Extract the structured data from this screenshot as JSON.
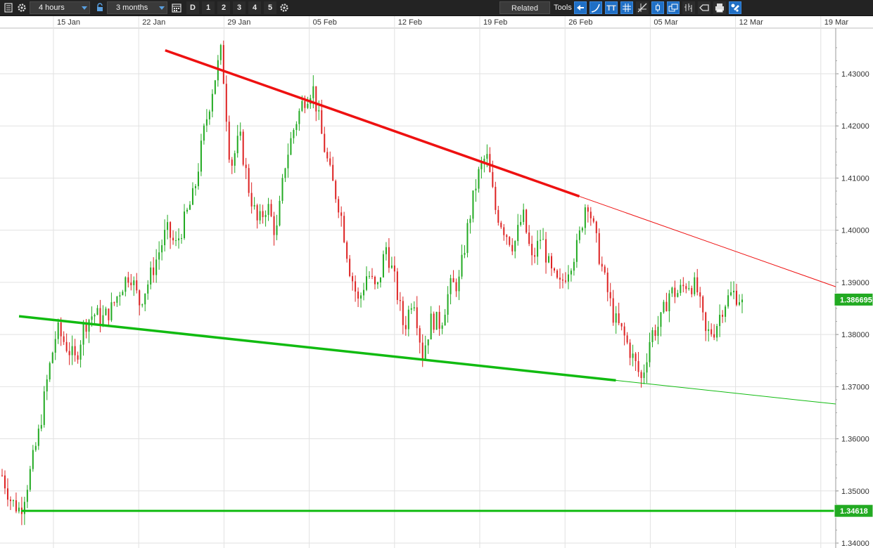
{
  "toolbar": {
    "timeframe": "4 hours",
    "range": "3 months",
    "period_buttons": [
      "D",
      "1",
      "2",
      "3",
      "4",
      "5"
    ],
    "related_label": "Related",
    "tools_label": "Tools",
    "tt_label": "TT",
    "icons": [
      "sheet-icon",
      "gear-icon",
      "lock-icon",
      "calendar-icon",
      "settings-icon",
      "back-arrow-icon",
      "curve-icon",
      "text-icon",
      "grid-icon",
      "crosshair-icon",
      "candle-icon",
      "window-icon",
      "bars-icon",
      "label-icon",
      "print-icon",
      "tools-icon"
    ],
    "colors": {
      "bg": "#232323",
      "accent": "#1f6fc5"
    }
  },
  "chart_data": {
    "type": "candlestick",
    "colors": {
      "up": "#22aa22",
      "down": "#dd2222",
      "resistance": "#ee1111",
      "support": "#11bb11"
    },
    "x_labels": [
      "15 Jan",
      "22 Jan",
      "29 Jan",
      "05 Feb",
      "12 Feb",
      "19 Feb",
      "26 Feb",
      "05 Mar",
      "12 Mar",
      "19 Mar"
    ],
    "y_ticks": [
      "1.43000",
      "1.42000",
      "1.41000",
      "1.40000",
      "1.39000",
      "1.38000",
      "1.37000",
      "1.36000",
      "1.35000",
      "1.34000"
    ],
    "ylim": [
      1.3395,
      1.4355
    ],
    "grid": true,
    "current_price": "1.386695",
    "level_price": "1.34618",
    "trend_lines": [
      {
        "name": "resistance",
        "from": {
          "date": "2018-01-24",
          "price": 1.4345
        },
        "to": {
          "date": "2018-02-27",
          "price": 1.4065
        },
        "extended_to": "2018-03-20"
      },
      {
        "name": "support",
        "from": {
          "date": "2018-01-12",
          "price": 1.3835
        },
        "to": {
          "date": "2018-03-02",
          "price": 1.3712
        },
        "extended_to": "2018-03-20"
      },
      {
        "name": "horizontal",
        "from": {
          "date": "2018-01-05",
          "price": 1.34618
        },
        "to": {
          "date": "2018-03-20",
          "price": 1.34618
        }
      }
    ],
    "price_path": [
      1.353,
      1.348,
      1.3463,
      1.353,
      1.361,
      1.372,
      1.381,
      1.378,
      1.375,
      1.382,
      1.384,
      1.383,
      1.385,
      1.389,
      1.392,
      1.386,
      1.39,
      1.395,
      1.4,
      1.397,
      1.402,
      1.407,
      1.418,
      1.427,
      1.4345,
      1.412,
      1.418,
      1.408,
      1.401,
      1.405,
      1.399,
      1.413,
      1.42,
      1.425,
      1.4275,
      1.418,
      1.41,
      1.404,
      1.393,
      1.386,
      1.392,
      1.388,
      1.397,
      1.39,
      1.381,
      1.388,
      1.376,
      1.383,
      1.382,
      1.389,
      1.39,
      1.401,
      1.41,
      1.4145,
      1.404,
      1.4,
      1.397,
      1.403,
      1.394,
      1.399,
      1.392,
      1.389,
      1.393,
      1.397,
      1.4065,
      1.398,
      1.39,
      1.383,
      1.38,
      1.3757,
      1.3712,
      1.38,
      1.382,
      1.388,
      1.388,
      1.39,
      1.389,
      1.38,
      1.381,
      1.386,
      1.388,
      1.3867
    ]
  }
}
